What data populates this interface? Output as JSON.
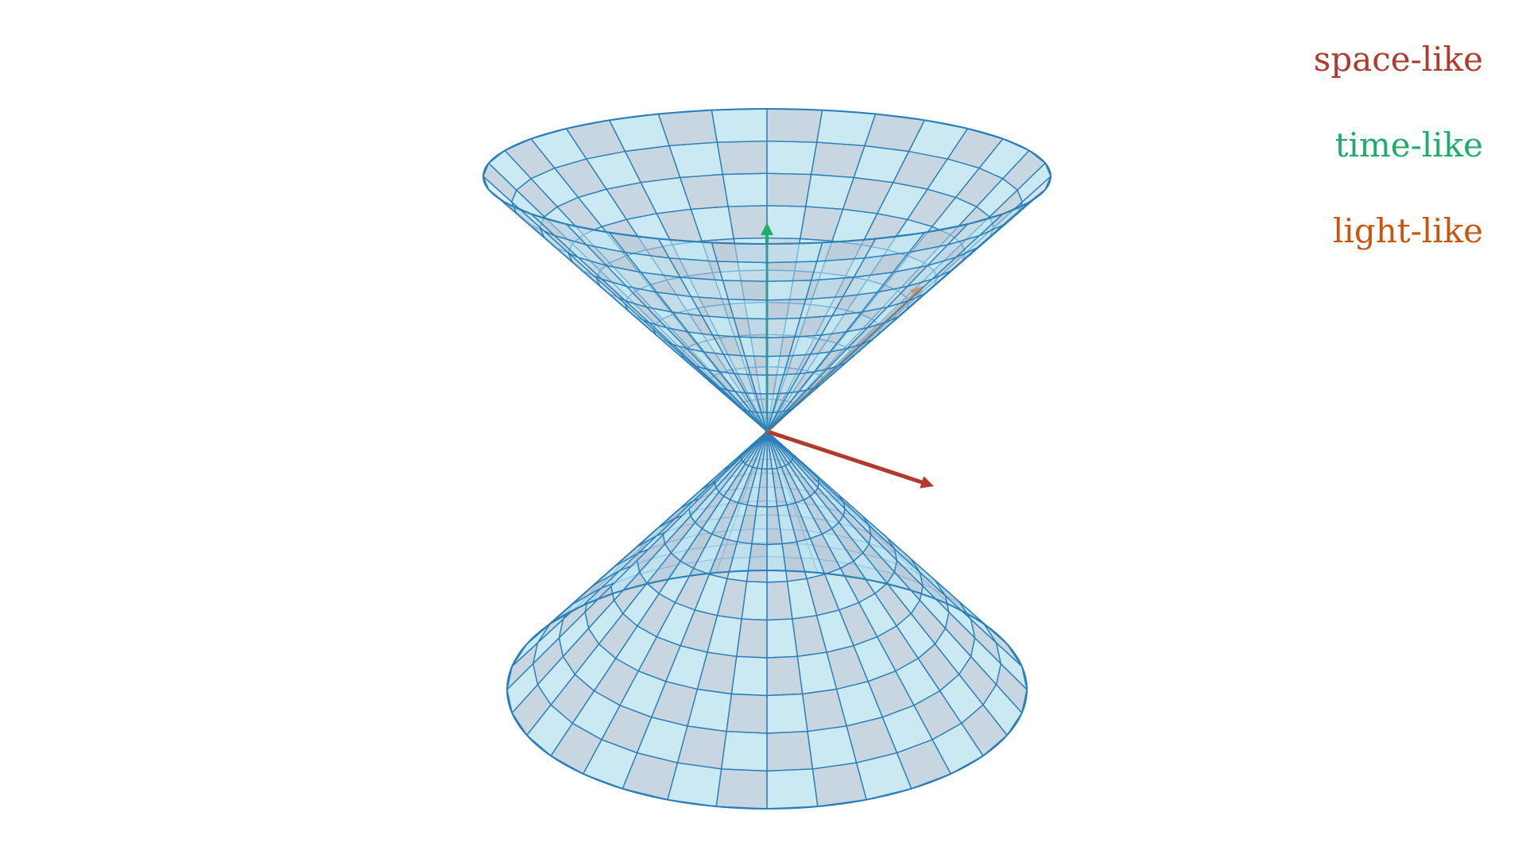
{
  "legend": {
    "items": [
      {
        "label": "space-like",
        "color": "#b03a2e"
      },
      {
        "label": "time-like",
        "color": "#1fad6b"
      },
      {
        "label": "light-like",
        "color": "#c9560e"
      }
    ]
  },
  "cone": {
    "fill_colors": [
      "#bde3ef",
      "#b7cbd8"
    ],
    "line_color": "#2a7fb8",
    "upper_nappe": "filled translucent cone opening upward",
    "lower_nappe": "filled translucent cone opening downward"
  },
  "vectors": {
    "space_like_color": "#b03a2e",
    "time_like_color": "#1fad6b",
    "light_like_color": "#c9560e"
  }
}
